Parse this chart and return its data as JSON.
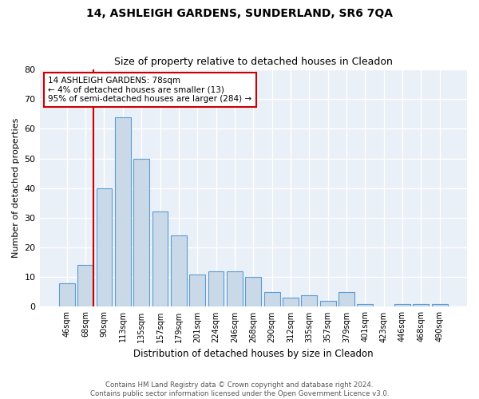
{
  "title": "14, ASHLEIGH GARDENS, SUNDERLAND, SR6 7QA",
  "subtitle": "Size of property relative to detached houses in Cleadon",
  "xlabel": "Distribution of detached houses by size in Cleadon",
  "ylabel": "Number of detached properties",
  "bar_labels": [
    "46sqm",
    "68sqm",
    "90sqm",
    "113sqm",
    "135sqm",
    "157sqm",
    "179sqm",
    "201sqm",
    "224sqm",
    "246sqm",
    "268sqm",
    "290sqm",
    "312sqm",
    "335sqm",
    "357sqm",
    "379sqm",
    "401sqm",
    "423sqm",
    "446sqm",
    "468sqm",
    "490sqm"
  ],
  "bar_values": [
    8,
    14,
    40,
    64,
    50,
    32,
    24,
    11,
    12,
    12,
    10,
    5,
    3,
    4,
    2,
    5,
    1,
    0,
    1,
    1,
    1
  ],
  "bar_color": "#c9d9e8",
  "bar_edge_color": "#5b9bd5",
  "bg_color": "#eaf0f7",
  "grid_color": "#ffffff",
  "vline_color": "#cc0000",
  "annotation_text": "14 ASHLEIGH GARDENS: 78sqm\n← 4% of detached houses are smaller (13)\n95% of semi-detached houses are larger (284) →",
  "annotation_box_color": "#ffffff",
  "annotation_box_edge": "#cc0000",
  "footer_line1": "Contains HM Land Registry data © Crown copyright and database right 2024.",
  "footer_line2": "Contains public sector information licensed under the Open Government Licence v3.0.",
  "ylim": [
    0,
    80
  ],
  "yticks": [
    0,
    10,
    20,
    30,
    40,
    50,
    60,
    70,
    80
  ]
}
